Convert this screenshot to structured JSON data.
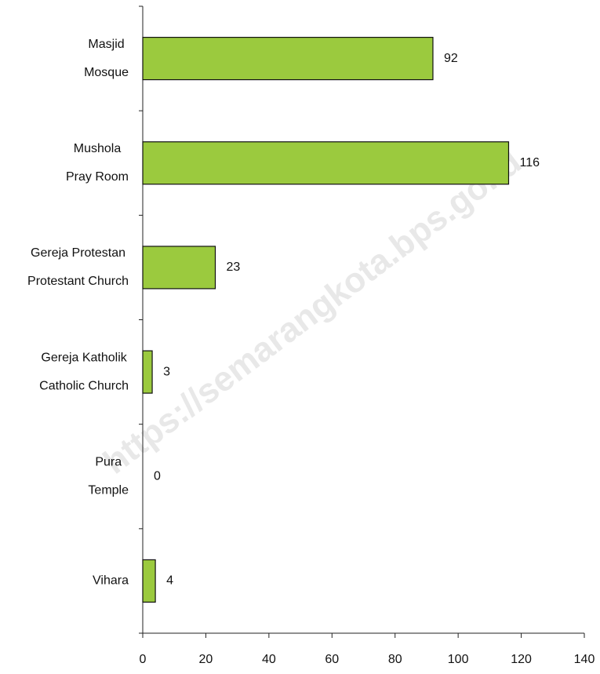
{
  "chart_data": {
    "type": "bar",
    "orientation": "horizontal",
    "categories": [
      [
        "Masjid",
        "Mosque"
      ],
      [
        "Mushola",
        "Pray Room"
      ],
      [
        "Gereja Protestan",
        "Protestant Church"
      ],
      [
        "Gereja Katholik",
        "Catholic Church"
      ],
      [
        "Pura",
        "Temple"
      ],
      [
        "Vihara"
      ]
    ],
    "values": [
      92,
      116,
      23,
      3,
      0,
      4
    ],
    "color": "#9bca3e",
    "xlim": [
      0,
      140
    ],
    "xticks": [
      0,
      20,
      40,
      60,
      80,
      100,
      120,
      140
    ],
    "grid": false,
    "watermark": "https://semarangkota.bps.go.id"
  }
}
